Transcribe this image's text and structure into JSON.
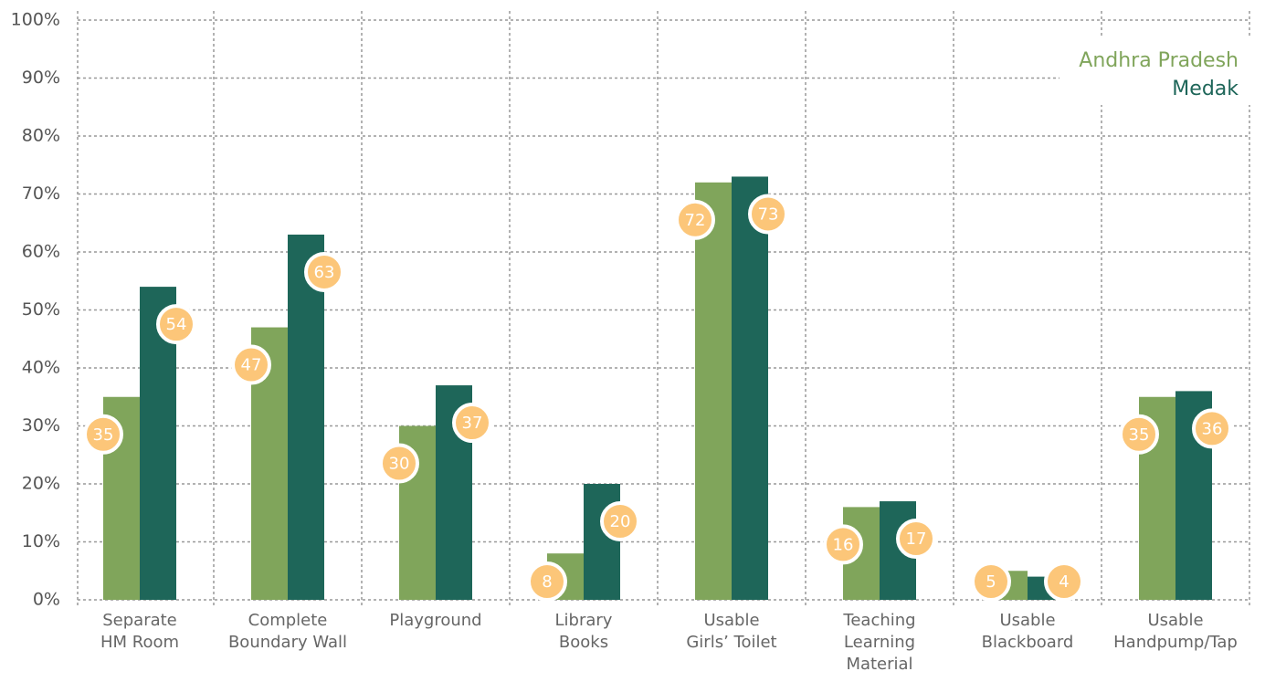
{
  "chart_data": {
    "type": "bar",
    "categories": [
      "Separate\nHM Room",
      "Complete\nBoundary Wall",
      "Playground",
      "Library\nBooks",
      "Usable\nGirls’ Toilet",
      "Teaching\nLearning\nMaterial",
      "Usable\nBlackboard",
      "Usable\nHandpump/Tap"
    ],
    "series": [
      {
        "name": "Andhra Pradesh",
        "color": "#80a55b",
        "values": [
          35,
          47,
          30,
          8,
          72,
          16,
          5,
          35
        ]
      },
      {
        "name": "Medak",
        "color": "#1e6659",
        "values": [
          54,
          63,
          37,
          20,
          73,
          17,
          4,
          36
        ]
      }
    ],
    "label_color": "#fcc679",
    "ylim": [
      0,
      100
    ],
    "yticks": [
      {
        "value": 0,
        "label": "0%"
      },
      {
        "value": 10,
        "label": "10%"
      },
      {
        "value": 20,
        "label": "20%"
      },
      {
        "value": 30,
        "label": "30%"
      },
      {
        "value": 40,
        "label": "40%"
      },
      {
        "value": 50,
        "label": "50%"
      },
      {
        "value": 60,
        "label": "60%"
      },
      {
        "value": 70,
        "label": "70%"
      },
      {
        "value": 80,
        "label": "80%"
      },
      {
        "value": 90,
        "label": "90%"
      },
      {
        "value": 100,
        "label": "100%"
      }
    ],
    "grid": true,
    "legend": "top-right"
  }
}
